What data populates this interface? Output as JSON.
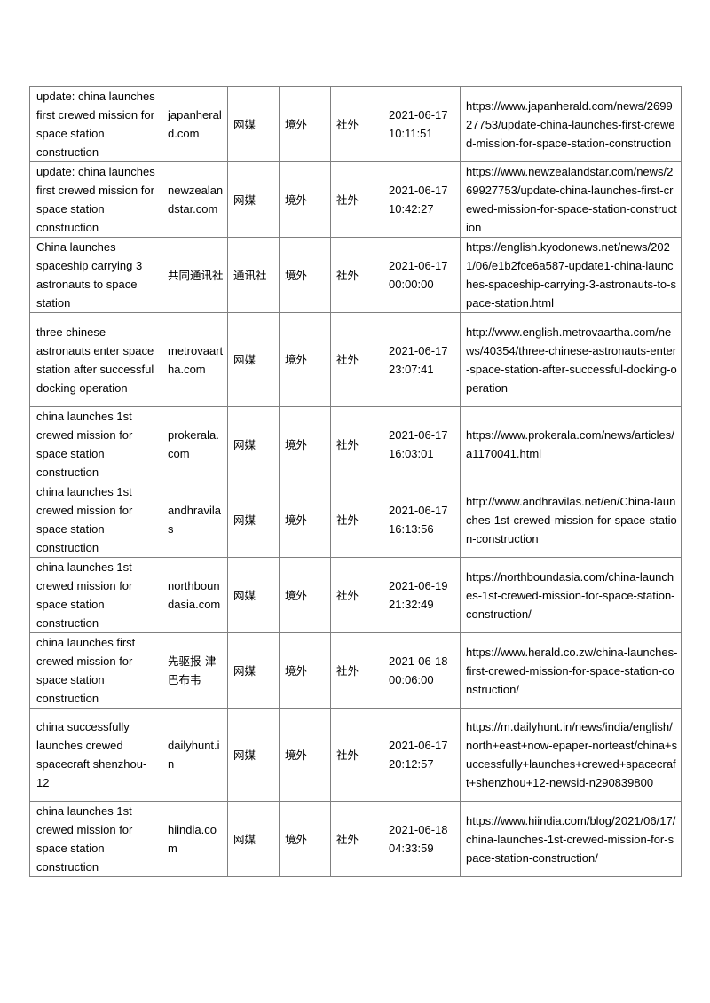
{
  "table": {
    "rows": [
      {
        "title": "update: china launches first crewed mission for space station construction",
        "source": "japanherald.com",
        "type": "网媒",
        "region": "境外",
        "category": "社外",
        "date": "2021-06-17",
        "time": "10:11:51",
        "url": "https://www.japanherald.com/news/269927753/update-china-launches-first-crewed-mission-for-space-station-construction"
      },
      {
        "title": "update: china launches first crewed mission for space station construction",
        "source": "newzealandstar.com",
        "type": "网媒",
        "region": "境外",
        "category": "社外",
        "date": "2021-06-17",
        "time": "10:42:27",
        "url": "https://www.newzealandstar.com/news/269927753/update-china-launches-first-crewed-mission-for-space-station-construction"
      },
      {
        "title": "China launches spaceship carrying 3 astronauts to space station",
        "source": "共同通讯社",
        "type": "通讯社",
        "region": "境外",
        "category": "社外",
        "date": "2021-06-17",
        "time": "00:00:00",
        "url": "https://english.kyodonews.net/news/2021/06/e1b2fce6a587-update1-china-launches-spaceship-carrying-3-astronauts-to-space-station.html"
      },
      {
        "title": "three chinese astronauts enter space station after successful docking operation",
        "source": "metrovaartha.com",
        "type": "网媒",
        "region": "境外",
        "category": "社外",
        "date": "2021-06-17",
        "time": "23:07:41",
        "url": "http://www.english.metrovaartha.com/news/40354/three-chinese-astronauts-enter-space-station-after-successful-docking-operation"
      },
      {
        "title": "china launches 1st crewed mission for space station construction",
        "source": "prokerala.com",
        "type": "网媒",
        "region": "境外",
        "category": "社外",
        "date": "2021-06-17",
        "time": "16:03:01",
        "url": "https://www.prokerala.com/news/articles/a1170041.html"
      },
      {
        "title": "china launches 1st crewed mission for space station construction",
        "source": "andhravilas",
        "type": "网媒",
        "region": "境外",
        "category": "社外",
        "date": "2021-06-17",
        "time": "16:13:56",
        "url": "http://www.andhravilas.net/en/China-launches-1st-crewed-mission-for-space-station-construction"
      },
      {
        "title": "china launches 1st crewed mission for space station construction",
        "source": "northboundasia.com",
        "type": "网媒",
        "region": "境外",
        "category": "社外",
        "date": "2021-06-19",
        "time": "21:32:49",
        "url": "https://northboundasia.com/china-launches-1st-crewed-mission-for-space-station-construction/"
      },
      {
        "title": "china launches first crewed mission for space station construction",
        "source": "先驱报-津巴布韦",
        "type": "网媒",
        "region": "境外",
        "category": "社外",
        "date": "2021-06-18",
        "time": "00:06:00",
        "url": "https://www.herald.co.zw/china-launches-first-crewed-mission-for-space-station-construction/"
      },
      {
        "title": "china successfully launches crewed spacecraft shenzhou-12",
        "source": "dailyhunt.in",
        "type": "网媒",
        "region": "境外",
        "category": "社外",
        "date": "2021-06-17",
        "time": "20:12:57",
        "url": "https://m.dailyhunt.in/news/india/english/north+east+now-epaper-norteast/china+successfully+launches+crewed+spacecraft+shenzhou+12-newsid-n290839800"
      },
      {
        "title": "china launches 1st crewed mission for space station construction",
        "source": "hiindia.com",
        "type": "网媒",
        "region": "境外",
        "category": "社外",
        "date": "2021-06-18",
        "time": "04:33:59",
        "url": "https://www.hiindia.com/blog/2021/06/17/china-launches-1st-crewed-mission-for-space-station-construction/"
      }
    ]
  }
}
